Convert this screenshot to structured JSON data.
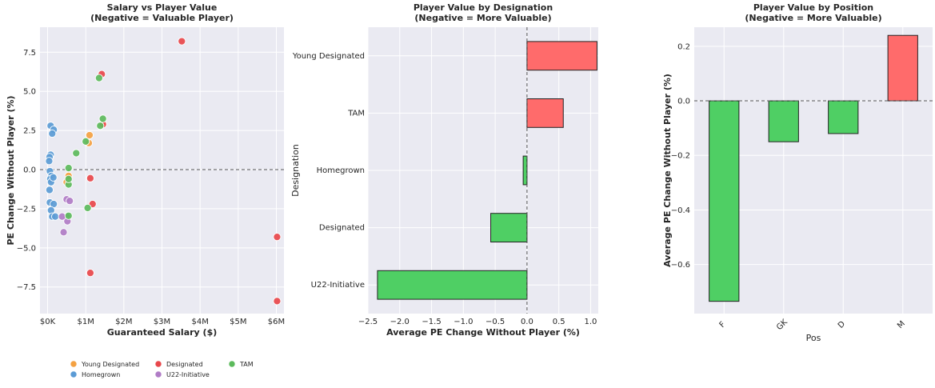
{
  "chart_data": [
    {
      "type": "scatter",
      "title": "Salary vs Player Value",
      "subtitle": "(Negative = Valuable Player)",
      "xlabel": "Guaranteed Salary ($)",
      "ylabel": "PE Change Without Player (%)",
      "xlim": [
        -0.2,
        6.2
      ],
      "ylim": [
        -9.2,
        9.1
      ],
      "xticks": [
        0,
        1,
        2,
        3,
        4,
        5,
        6
      ],
      "xtick_labels": [
        "$0K",
        "$1M",
        "$2M",
        "$3M",
        "$4M",
        "$5M",
        "$6M"
      ],
      "yticks": [
        -7.5,
        -5.0,
        -2.5,
        0.0,
        2.5,
        5.0,
        7.5
      ],
      "ytick_labels": [
        "−7.5",
        "−5.0",
        "−2.5",
        "0.0",
        "2.5",
        "5.0",
        "7.5"
      ],
      "reference_line_y": 0,
      "legend_position": "bottom",
      "series": [
        {
          "name": "Young Designated",
          "color": "#f4a142",
          "points": [
            [
              1.1,
              2.2
            ],
            [
              1.08,
              1.7
            ],
            [
              1.45,
              2.9
            ],
            [
              0.5,
              -0.8
            ],
            [
              0.55,
              -0.4
            ]
          ]
        },
        {
          "name": "Homegrown",
          "color": "#5b9bd5",
          "points": [
            [
              0.08,
              2.8
            ],
            [
              0.16,
              2.55
            ],
            [
              0.12,
              2.3
            ],
            [
              0.08,
              0.95
            ],
            [
              0.05,
              0.8
            ],
            [
              0.04,
              0.55
            ],
            [
              0.06,
              -0.1
            ],
            [
              0.1,
              -0.4
            ],
            [
              0.07,
              -0.6
            ],
            [
              0.09,
              -0.8
            ],
            [
              0.05,
              -1.3
            ],
            [
              0.06,
              -2.1
            ],
            [
              0.16,
              -2.2
            ],
            [
              0.09,
              -2.6
            ],
            [
              0.12,
              -3.0
            ],
            [
              0.2,
              -3.0
            ],
            [
              0.15,
              -0.5
            ]
          ]
        },
        {
          "name": "Designated",
          "color": "#e8474b",
          "points": [
            [
              3.52,
              8.2
            ],
            [
              1.42,
              6.1
            ],
            [
              1.45,
              2.9
            ],
            [
              1.12,
              -0.55
            ],
            [
              1.18,
              -2.2
            ],
            [
              1.12,
              -6.6
            ],
            [
              6.02,
              -4.3
            ],
            [
              6.02,
              -8.4
            ]
          ]
        },
        {
          "name": "U22-Initiative",
          "color": "#b07cc6",
          "points": [
            [
              0.5,
              -1.9
            ],
            [
              0.58,
              -2.0
            ],
            [
              0.5,
              -3.0
            ],
            [
              0.52,
              -3.3
            ],
            [
              0.42,
              -4.0
            ],
            [
              0.38,
              -3.0
            ]
          ]
        },
        {
          "name": "TAM",
          "color": "#5cba5c",
          "points": [
            [
              1.35,
              5.85
            ],
            [
              1.45,
              3.25
            ],
            [
              1.38,
              2.8
            ],
            [
              1.0,
              1.8
            ],
            [
              0.75,
              1.05
            ],
            [
              0.55,
              0.1
            ],
            [
              0.55,
              -0.95
            ],
            [
              1.05,
              -2.45
            ],
            [
              0.55,
              -2.95
            ],
            [
              0.55,
              -0.6
            ]
          ]
        }
      ]
    },
    {
      "type": "bar",
      "orientation": "horizontal",
      "title": "Player Value by Designation",
      "subtitle": "(Negative = More Valuable)",
      "xlabel": "Average PE Change Without Player (%)",
      "ylabel": "Designation",
      "xlim": [
        -2.5,
        1.12
      ],
      "xticks": [
        -2.5,
        -2.0,
        -1.5,
        -1.0,
        -0.5,
        0.0,
        0.5,
        1.0
      ],
      "xtick_labels": [
        "−2.5",
        "−2.0",
        "−1.5",
        "−1.0",
        "−0.5",
        "0.0",
        "0.5",
        "1.0"
      ],
      "categories": [
        "Young Designated",
        "TAM",
        "Homegrown",
        "Designated",
        "U22-Initiative"
      ],
      "values": [
        1.1,
        0.57,
        -0.06,
        -0.57,
        -2.35
      ],
      "positive_color": "#ff6b6b",
      "negative_color": "#4fcf64",
      "reference_line_x": 0
    },
    {
      "type": "bar",
      "title": "Player Value by Position",
      "subtitle": "(Negative = More Valuable)",
      "xlabel": "Pos",
      "ylabel": "Average PE Change Without Player (%)",
      "ylim": [
        -0.78,
        0.27
      ],
      "yticks": [
        -0.6,
        -0.4,
        -0.2,
        0.0,
        0.2
      ],
      "ytick_labels": [
        "−0.6",
        "−0.4",
        "−0.2",
        "0.0",
        "0.2"
      ],
      "categories": [
        "F",
        "GK",
        "D",
        "M"
      ],
      "values": [
        -0.735,
        -0.15,
        -0.12,
        0.24
      ],
      "positive_color": "#ff6b6b",
      "negative_color": "#4fcf64",
      "reference_line_y": 0
    }
  ]
}
